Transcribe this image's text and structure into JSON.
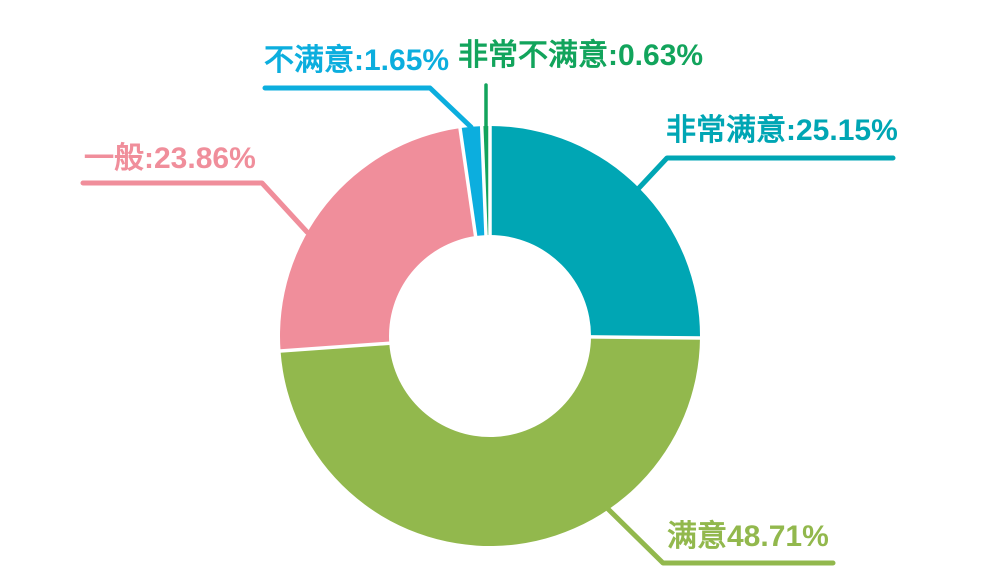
{
  "page": {
    "background": "#ffffff"
  },
  "chart_data": {
    "type": "pie",
    "subtype": "donut",
    "title": "",
    "categories": [
      "非常满意",
      "满意",
      "一般",
      "不满意",
      "非常不满意"
    ],
    "values": [
      25.15,
      48.71,
      23.86,
      1.65,
      0.63
    ],
    "unit": "%",
    "colors": [
      "#00a6b4",
      "#92b84d",
      "#f08e9b",
      "#0caede",
      "#12a45c"
    ],
    "labels": [
      "非常满意:25.15%",
      "满意48.71%",
      "一般:23.86%",
      "不满意:1.65%",
      "非常不满意:0.63%"
    ],
    "start_angle": "12-o-clock",
    "direction": "clockwise",
    "inner_radius_ratio": 0.48,
    "separator_color": "#ffffff",
    "legend_position": "none",
    "label_style": "outside-leader-lines"
  }
}
